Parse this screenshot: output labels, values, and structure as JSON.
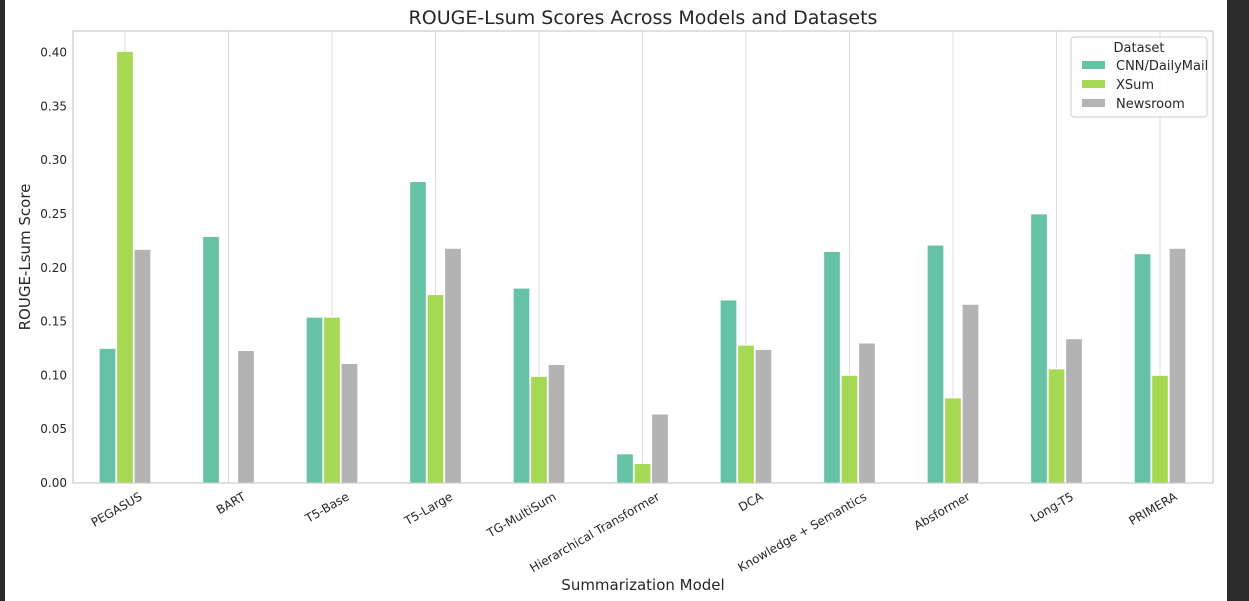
{
  "chart_data": {
    "type": "bar",
    "title": "ROUGE-Lsum Scores Across Models and Datasets",
    "xlabel": "Summarization Model",
    "ylabel": "ROUGE-Lsum Score",
    "ylim": [
      0,
      0.42
    ],
    "yticks": [
      "0.00",
      "0.05",
      "0.10",
      "0.15",
      "0.20",
      "0.25",
      "0.30",
      "0.35",
      "0.40"
    ],
    "grid": true,
    "legend": {
      "title": "Dataset",
      "placement": "top-right"
    },
    "categories": [
      "PEGASUS",
      "BART",
      "T5-Base",
      "T5-Large",
      "TG-MultiSum",
      "Hierarchical Transformer",
      "DCA",
      "Knowledge + Semantics",
      "Absformer",
      "Long-T5",
      "PRIMERA"
    ],
    "series": [
      {
        "name": "CNN/DailyMail",
        "color": "#66c2a5",
        "values": [
          0.125,
          0.229,
          0.154,
          0.28,
          0.181,
          0.027,
          0.17,
          0.215,
          0.221,
          0.25,
          0.213
        ]
      },
      {
        "name": "XSum",
        "color": "#a6d854",
        "values": [
          0.401,
          null,
          0.154,
          0.175,
          0.099,
          0.018,
          0.128,
          0.1,
          0.079,
          0.106,
          0.1
        ]
      },
      {
        "name": "Newsroom",
        "color": "#b3b3b3",
        "values": [
          0.217,
          0.123,
          0.111,
          0.218,
          0.11,
          0.064,
          0.124,
          0.13,
          0.166,
          0.134,
          0.218
        ]
      }
    ]
  }
}
